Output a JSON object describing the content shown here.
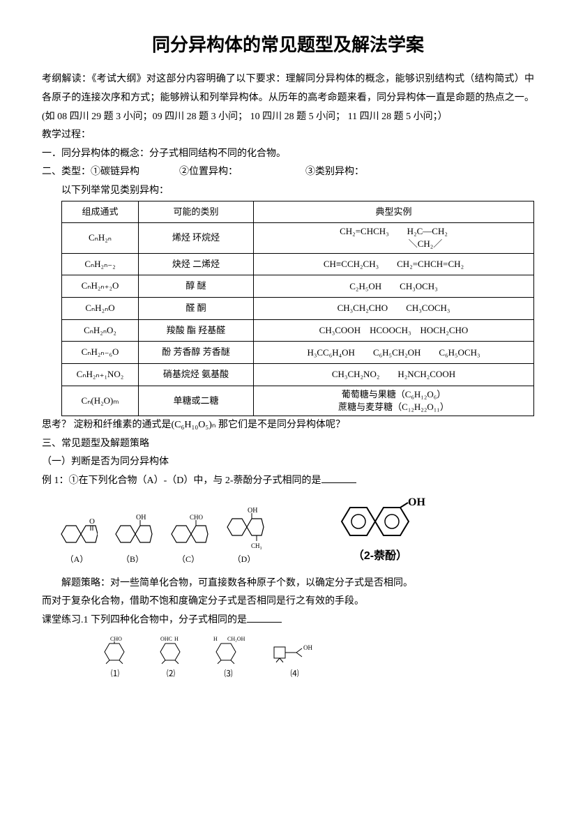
{
  "title": "同分异构体的常见题型及解法学案",
  "intro": {
    "p1": "考纲解读：《考试大纲》对这部分内容明确了以下要求：理解同分异构体的概念，能够识别结构式（结构简式）中各原子的连接次序和方式；能够辨认和列举异构体。从历年的高考命题来看，同分异构体一直是命题的热点之一。(如 08 四川 29 题 3 小问；09 四川 28 题 3 小问；  10 四川 28 题 5 小问；  11 四川 28 题 5 小问；）",
    "p2": "教学过程：",
    "p3": "一．同分异构体的概念：分子式相同结构不同的化合物。",
    "p4_pre": "二、类型：①碳链异构",
    "p4_mid": "②位置异构：",
    "p4_end": "③类别异构：",
    "p5": "以下列举常见类别异构："
  },
  "table": {
    "headers": [
      "组成通式",
      "可能的类别",
      "典型实例"
    ],
    "rows": [
      {
        "formula": "CₙH₂ₙ",
        "category": "烯烃 环烷烃",
        "example_html": "CH₂=CHCH₃  H₂C—CH₂<br>       ＼CH₂／"
      },
      {
        "formula": "CₙH₂ₙ₋₂",
        "category": "炔烃 二烯烃",
        "example": "CH≡CCH₂CH₃　　CH₂=CHCH=CH₂"
      },
      {
        "formula": "CₙH₂ₙ₊₂O",
        "category": "醇 醚",
        "example": "C₂H₅OH　　CH₃OCH₃"
      },
      {
        "formula": "CₙH₂ₙO",
        "category": "醛 酮",
        "example": "CH₃CH₂CHO　　CH₃COCH₃"
      },
      {
        "formula": "CₙH₂ₙO₂",
        "category": "羧酸 酯 羟基醛",
        "example": "CH₃COOH　HCOOCH₃　HOCH₂CHO"
      },
      {
        "formula": "CₙH₂ₙ₋₆O",
        "category": "酚 芳香醇 芳香醚",
        "example": "H₃CC₆H₄OH　　C₆H₅CH₂OH　　C₆H₅OCH₃"
      },
      {
        "formula": "CₙH₂ₙ₊₁NO₂",
        "category": "硝基烷烃 氨基酸",
        "example": "CH₃CH₂NO₂　　H₂NCH₂COOH"
      },
      {
        "formula": "Cₙ(H₂O)ₘ",
        "category": "单糖或二糖",
        "example_html": "葡萄糖与果糖（C₆H₁₂O₆）<br>蔗糖与麦芽糖（C₁₂H₂₂O₁₁）"
      }
    ]
  },
  "after_table": {
    "p1": "思考？   淀粉和纤维素的通式是(C₆H₁₀O₅)ₙ 那它们是不是同分异构体呢？",
    "p2": "三、常见题型及解题策略",
    "p3": "（一）判断是否为同分异构体",
    "p4": "例 1：①在下列化合物（A）-（D）中，与 2-萘酚分子式相同的是"
  },
  "labels": {
    "a": "（A）",
    "b": "（B）",
    "c": "（C）",
    "d": "（D）",
    "naphthol": "（2-萘酚）"
  },
  "strategy": {
    "p1": "解题策略：对一些简单化合物，可直接数各种原子个数，以确定分子式是否相同。",
    "p2": "而对于复杂化合物，借助不饱和度确定分子式是否相同是行之有效的手段。",
    "p3": "  课堂练习.1 下列四种化合物中，分子式相同的是"
  },
  "small_labels": {
    "l1": "⑴",
    "l2": "⑵",
    "l3": "⑶",
    "l4": "⑷"
  },
  "colors": {
    "text": "#000000",
    "bg": "#ffffff",
    "border": "#000000"
  }
}
